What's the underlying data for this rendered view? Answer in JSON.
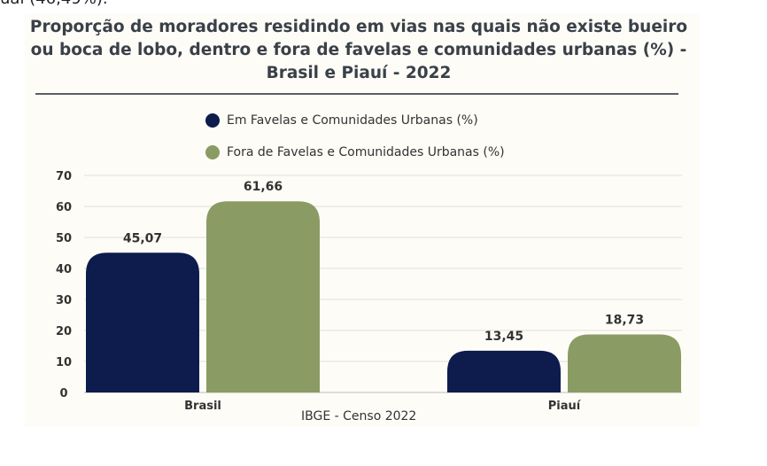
{
  "top_fragment": "ual (46,49%).",
  "chart_data": {
    "type": "bar",
    "title": "Proporção de moradores residindo em vias nas quais não existe bueiro ou boca de lobo, dentro e fora de favelas e comunidades urbanas (%) - Brasil e Piauí - 2022",
    "categories": [
      "Brasil",
      "Piauí"
    ],
    "series": [
      {
        "name": "Em Favelas e Comunidades Urbanas (%)",
        "values": [
          45.07,
          13.45
        ],
        "labels": [
          "45,07",
          "13,45"
        ],
        "color": "#0d1c4d"
      },
      {
        "name": "Fora de Favelas e Comunidades Urbanas (%)",
        "values": [
          61.66,
          18.73
        ],
        "labels": [
          "61,66",
          "18,73"
        ],
        "color": "#8b9b64"
      }
    ],
    "ylim": [
      0,
      70
    ],
    "yticks": [
      "0",
      "10",
      "20",
      "30",
      "40",
      "50",
      "60",
      "70"
    ],
    "grid": true,
    "legend": "top",
    "source": "IBGE - Censo 2022"
  }
}
